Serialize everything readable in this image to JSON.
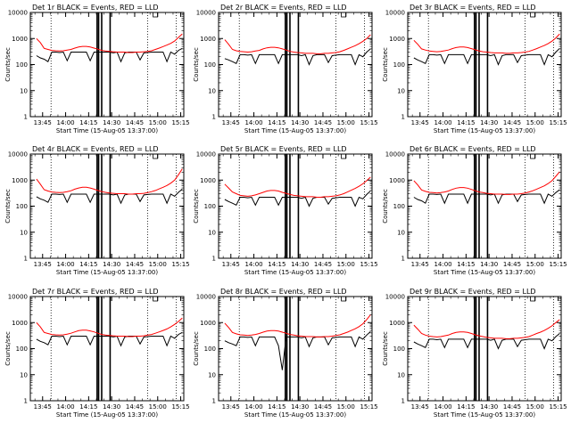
{
  "chart_data": [
    {
      "type": "line",
      "title": "Det 1r BLACK = Events, RED = LLD",
      "xlabel": "Start Time (15-Aug-05 13:37:00)",
      "ylabel": "Counts/sec",
      "xlim": [
        "13:37",
        "15:17"
      ],
      "ylim": [
        1,
        10000
      ],
      "yscale": "log",
      "grid": false,
      "x_ticks": [
        "13:45",
        "14:00",
        "14:15",
        "14:30",
        "14:45",
        "15:00",
        "15:15"
      ],
      "y_ticks": [
        "1",
        "10",
        "100",
        "1000",
        "10000"
      ],
      "series": [
        {
          "color": "#000000",
          "values": [
            220,
            180,
            160,
            130,
            300,
            300,
            290,
            300,
            140,
            300,
            300,
            300,
            300,
            300,
            140,
            300,
            300,
            300,
            300,
            300,
            280,
            300,
            130,
            280,
            300,
            300,
            300,
            150,
            280,
            290,
            300,
            300,
            300,
            300,
            130,
            300,
            250,
            350,
            420
          ]
        },
        {
          "color": "#ff0000",
          "values": [
            1000,
            700,
            420,
            380,
            350,
            340,
            330,
            340,
            360,
            380,
            430,
            470,
            500,
            500,
            470,
            430,
            390,
            350,
            330,
            320,
            310,
            300,
            300,
            300,
            290,
            290,
            300,
            300,
            310,
            320,
            340,
            380,
            430,
            490,
            560,
            650,
            800,
            1100,
            1500
          ]
        }
      ]
    },
    {
      "type": "line",
      "title": "Det 2r BLACK = Events, RED = LLD",
      "xlabel": "Start Time (15-Aug-05 13:37:00)",
      "ylabel": "Counts/sec",
      "xlim": [
        "13:37",
        "15:17"
      ],
      "ylim": [
        1,
        10000
      ],
      "yscale": "log",
      "grid": false,
      "x_ticks": [
        "13:45",
        "14:00",
        "14:15",
        "14:30",
        "14:45",
        "15:00",
        "15:15"
      ],
      "y_ticks": [
        "1",
        "10",
        "100",
        "1000",
        "10000"
      ],
      "series": [
        {
          "color": "#000000",
          "values": [
            170,
            150,
            130,
            110,
            240,
            240,
            230,
            240,
            110,
            240,
            240,
            240,
            240,
            240,
            110,
            240,
            240,
            240,
            240,
            240,
            220,
            240,
            100,
            220,
            240,
            240,
            240,
            120,
            220,
            230,
            240,
            240,
            240,
            240,
            100,
            240,
            200,
            300,
            400
          ]
        },
        {
          "color": "#ff0000",
          "values": [
            900,
            600,
            380,
            340,
            320,
            310,
            300,
            310,
            330,
            350,
            400,
            440,
            460,
            460,
            440,
            400,
            360,
            320,
            300,
            290,
            280,
            270,
            270,
            270,
            260,
            260,
            270,
            270,
            280,
            290,
            310,
            350,
            400,
            460,
            530,
            630,
            780,
            1000,
            1400
          ]
        }
      ]
    },
    {
      "type": "line",
      "title": "Det 3r BLACK = Events, RED = LLD",
      "xlabel": "Start Time (15-Aug-05 13:37:00)",
      "ylabel": "Counts/sec",
      "xlim": [
        "13:37",
        "15:17"
      ],
      "ylim": [
        1,
        10000
      ],
      "yscale": "log",
      "grid": false,
      "x_ticks": [
        "13:45",
        "14:00",
        "14:15",
        "14:30",
        "14:45",
        "15:00",
        "15:15"
      ],
      "y_ticks": [
        "1",
        "10",
        "100",
        "1000",
        "10000"
      ],
      "series": [
        {
          "color": "#000000",
          "values": [
            180,
            150,
            130,
            110,
            240,
            240,
            230,
            240,
            110,
            240,
            240,
            240,
            240,
            240,
            110,
            240,
            240,
            240,
            240,
            240,
            220,
            240,
            100,
            220,
            240,
            240,
            240,
            120,
            220,
            230,
            240,
            240,
            240,
            240,
            100,
            240,
            200,
            300,
            420
          ]
        },
        {
          "color": "#ff0000",
          "values": [
            850,
            600,
            400,
            360,
            330,
            320,
            310,
            320,
            340,
            360,
            410,
            450,
            470,
            470,
            450,
            410,
            370,
            330,
            310,
            300,
            290,
            280,
            280,
            280,
            270,
            270,
            280,
            280,
            290,
            300,
            320,
            360,
            410,
            470,
            540,
            640,
            790,
            1050,
            1500
          ]
        }
      ]
    },
    {
      "type": "line",
      "title": "Det 4r BLACK = Events, RED = LLD",
      "xlabel": "Start Time (15-Aug-05 13:37:00)",
      "ylabel": "Counts/sec",
      "xlim": [
        "13:37",
        "15:17"
      ],
      "ylim": [
        1,
        10000
      ],
      "yscale": "log",
      "grid": false,
      "x_ticks": [
        "13:45",
        "14:00",
        "14:15",
        "14:30",
        "14:45",
        "15:00",
        "15:15"
      ],
      "y_ticks": [
        "1",
        "10",
        "100",
        "1000",
        "10000"
      ],
      "series": [
        {
          "color": "#000000",
          "values": [
            230,
            190,
            170,
            140,
            290,
            290,
            280,
            290,
            140,
            290,
            290,
            290,
            290,
            290,
            140,
            290,
            290,
            290,
            290,
            290,
            270,
            290,
            130,
            270,
            290,
            290,
            290,
            150,
            270,
            280,
            290,
            290,
            290,
            290,
            130,
            290,
            240,
            340,
            450
          ]
        },
        {
          "color": "#ff0000",
          "values": [
            1100,
            700,
            430,
            380,
            350,
            340,
            330,
            340,
            360,
            390,
            450,
            500,
            530,
            530,
            500,
            450,
            400,
            360,
            340,
            320,
            310,
            300,
            300,
            300,
            290,
            290,
            300,
            300,
            310,
            330,
            360,
            400,
            460,
            530,
            620,
            760,
            1000,
            1600,
            2700
          ]
        }
      ]
    },
    {
      "type": "line",
      "title": "Det 5r BLACK = Events, RED = LLD",
      "xlabel": "Start Time (15-Aug-05 13:37:00)",
      "ylabel": "Counts/sec",
      "xlim": [
        "13:37",
        "15:17"
      ],
      "ylim": [
        1,
        10000
      ],
      "yscale": "log",
      "grid": false,
      "x_ticks": [
        "13:45",
        "14:00",
        "14:15",
        "14:30",
        "14:45",
        "15:00",
        "15:15"
      ],
      "y_ticks": [
        "1",
        "10",
        "100",
        "1000",
        "10000"
      ],
      "series": [
        {
          "color": "#000000",
          "values": [
            180,
            150,
            130,
            110,
            220,
            220,
            210,
            220,
            110,
            220,
            220,
            220,
            220,
            220,
            110,
            220,
            220,
            220,
            220,
            220,
            200,
            220,
            100,
            200,
            220,
            220,
            220,
            120,
            200,
            210,
            220,
            220,
            220,
            220,
            100,
            220,
            190,
            280,
            380
          ]
        },
        {
          "color": "#ff0000",
          "values": [
            700,
            500,
            350,
            300,
            260,
            250,
            240,
            250,
            270,
            300,
            340,
            380,
            400,
            400,
            380,
            340,
            310,
            280,
            260,
            250,
            240,
            230,
            230,
            230,
            220,
            220,
            230,
            230,
            240,
            250,
            270,
            300,
            350,
            410,
            480,
            580,
            720,
            950,
            1300
          ]
        }
      ]
    },
    {
      "type": "line",
      "title": "Det 6r BLACK = Events, RED = LLD",
      "xlabel": "Start Time (15-Aug-05 13:37:00)",
      "ylabel": "Counts/sec",
      "xlim": [
        "13:37",
        "15:17"
      ],
      "ylim": [
        1,
        10000
      ],
      "yscale": "log",
      "grid": false,
      "x_ticks": [
        "13:45",
        "14:00",
        "14:15",
        "14:30",
        "14:45",
        "15:00",
        "15:15"
      ],
      "y_ticks": [
        "1",
        "10",
        "100",
        "1000",
        "10000"
      ],
      "series": [
        {
          "color": "#000000",
          "values": [
            220,
            180,
            160,
            130,
            290,
            290,
            280,
            290,
            130,
            290,
            290,
            290,
            290,
            290,
            130,
            290,
            290,
            290,
            290,
            290,
            270,
            290,
            130,
            270,
            290,
            290,
            290,
            150,
            270,
            280,
            290,
            290,
            290,
            290,
            130,
            290,
            240,
            330,
            430
          ]
        },
        {
          "color": "#ff0000",
          "values": [
            950,
            650,
            420,
            370,
            340,
            330,
            320,
            330,
            350,
            380,
            440,
            490,
            520,
            520,
            490,
            440,
            390,
            350,
            330,
            310,
            300,
            290,
            290,
            290,
            280,
            280,
            290,
            290,
            300,
            320,
            350,
            390,
            450,
            520,
            600,
            740,
            950,
            1400,
            2100
          ]
        }
      ]
    },
    {
      "type": "line",
      "title": "Det 7r BLACK = Events, RED = LLD",
      "xlabel": "Start Time (15-Aug-05 13:37:00)",
      "ylabel": "Counts/sec",
      "xlim": [
        "13:37",
        "15:17"
      ],
      "ylim": [
        1,
        10000
      ],
      "yscale": "log",
      "grid": false,
      "x_ticks": [
        "13:45",
        "14:00",
        "14:15",
        "14:30",
        "14:45",
        "15:00",
        "15:15"
      ],
      "y_ticks": [
        "1",
        "10",
        "100",
        "1000",
        "10000"
      ],
      "series": [
        {
          "color": "#000000",
          "values": [
            230,
            190,
            170,
            140,
            300,
            300,
            290,
            300,
            140,
            300,
            300,
            300,
            300,
            300,
            140,
            300,
            300,
            300,
            300,
            300,
            280,
            300,
            130,
            280,
            300,
            300,
            300,
            150,
            280,
            290,
            300,
            300,
            300,
            300,
            130,
            300,
            250,
            350,
            420
          ]
        },
        {
          "color": "#ff0000",
          "values": [
            1000,
            680,
            420,
            380,
            350,
            340,
            330,
            340,
            360,
            390,
            440,
            490,
            510,
            510,
            480,
            440,
            390,
            350,
            330,
            320,
            310,
            300,
            300,
            300,
            290,
            290,
            300,
            300,
            310,
            330,
            350,
            390,
            440,
            500,
            570,
            680,
            850,
            1100,
            1500
          ]
        }
      ]
    },
    {
      "type": "line",
      "title": "Det 8r BLACK = Events, RED = LLD",
      "xlabel": "Start Time (15-Aug-05 13:37:00)",
      "ylabel": "Counts/sec",
      "xlim": [
        "13:37",
        "15:17"
      ],
      "ylim": [
        1,
        10000
      ],
      "yscale": "log",
      "grid": false,
      "x_ticks": [
        "13:45",
        "14:00",
        "14:15",
        "14:30",
        "14:45",
        "15:00",
        "15:15"
      ],
      "y_ticks": [
        "1",
        "10",
        "100",
        "1000",
        "10000"
      ],
      "series": [
        {
          "color": "#000000",
          "values": [
            200,
            170,
            150,
            130,
            280,
            280,
            270,
            280,
            130,
            280,
            280,
            280,
            280,
            280,
            130,
            15,
            280,
            280,
            280,
            280,
            260,
            280,
            120,
            260,
            280,
            280,
            280,
            140,
            260,
            270,
            280,
            280,
            280,
            280,
            120,
            280,
            230,
            330,
            450
          ]
        },
        {
          "color": "#ff0000",
          "values": [
            950,
            650,
            420,
            370,
            340,
            330,
            320,
            330,
            350,
            380,
            430,
            470,
            490,
            490,
            470,
            430,
            390,
            350,
            330,
            310,
            300,
            290,
            290,
            290,
            280,
            280,
            290,
            290,
            300,
            320,
            340,
            380,
            430,
            500,
            580,
            700,
            900,
            1300,
            2000
          ]
        }
      ]
    },
    {
      "type": "line",
      "title": "Det 9r BLACK = Events, RED = LLD",
      "xlabel": "Start Time (15-Aug-05 13:37:00)",
      "ylabel": "Counts/sec",
      "xlim": [
        "13:37",
        "15:17"
      ],
      "ylim": [
        1,
        10000
      ],
      "yscale": "log",
      "grid": false,
      "x_ticks": [
        "13:45",
        "14:00",
        "14:15",
        "14:30",
        "14:45",
        "15:00",
        "15:15"
      ],
      "y_ticks": [
        "1",
        "10",
        "100",
        "1000",
        "10000"
      ],
      "series": [
        {
          "color": "#000000",
          "values": [
            180,
            150,
            130,
            110,
            230,
            230,
            220,
            230,
            110,
            230,
            230,
            230,
            230,
            230,
            110,
            230,
            230,
            230,
            230,
            230,
            210,
            230,
            100,
            210,
            230,
            230,
            230,
            120,
            210,
            220,
            230,
            230,
            230,
            230,
            100,
            230,
            200,
            290,
            380
          ]
        },
        {
          "color": "#ff0000",
          "values": [
            800,
            560,
            380,
            330,
            300,
            290,
            280,
            290,
            310,
            330,
            380,
            420,
            440,
            440,
            420,
            380,
            340,
            310,
            290,
            270,
            260,
            250,
            250,
            250,
            240,
            240,
            250,
            250,
            260,
            270,
            290,
            330,
            380,
            430,
            500,
            600,
            750,
            1000,
            1300
          ]
        }
      ]
    }
  ]
}
